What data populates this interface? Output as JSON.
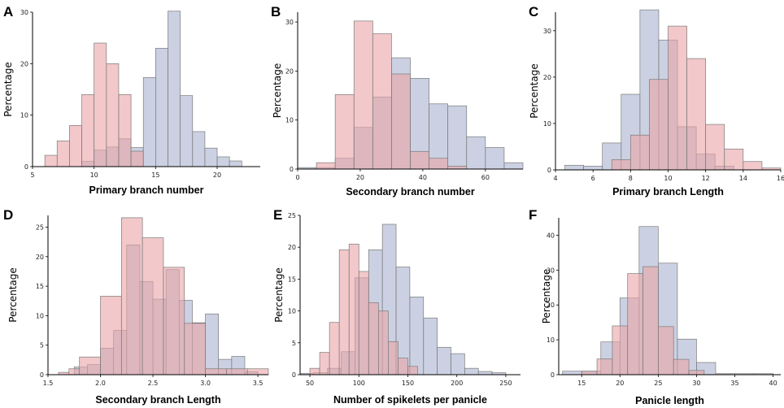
{
  "colors": {
    "series_a": "#e9a3a7",
    "series_b": "#a8b2cf",
    "edge": "#7b7b7b",
    "axis": "#000000"
  },
  "chart_data": [
    {
      "type": "bar",
      "letter": "A",
      "title": "",
      "xlabel": "Primary branch number",
      "ylabel": "Percentage",
      "xlim": [
        5,
        23.5
      ],
      "ylim": [
        0,
        30
      ],
      "xticks": [
        5,
        10,
        15,
        20
      ],
      "yticks": [
        0,
        10,
        20,
        30
      ],
      "grid": false,
      "series": [
        {
          "name": "red",
          "bins": [
            [
              6,
              7,
              2.2
            ],
            [
              7,
              8,
              5
            ],
            [
              8,
              9,
              8
            ],
            [
              9,
              10,
              14
            ],
            [
              10,
              11,
              24
            ],
            [
              11,
              12,
              20
            ],
            [
              12,
              13,
              14
            ],
            [
              13,
              14,
              3
            ]
          ]
        },
        {
          "name": "blue",
          "bins": [
            [
              9,
              10,
              1
            ],
            [
              10,
              11,
              3.2
            ],
            [
              11,
              12,
              3.8
            ],
            [
              12,
              13,
              5.4
            ],
            [
              13,
              14,
              3.7
            ],
            [
              14,
              15,
              17.3
            ],
            [
              15,
              16,
              23
            ],
            [
              16,
              17,
              30.2
            ],
            [
              17,
              18,
              13.8
            ],
            [
              18,
              19,
              6.8
            ],
            [
              19,
              20,
              3.6
            ],
            [
              20,
              21,
              1.9
            ],
            [
              21,
              22,
              1.1
            ]
          ]
        }
      ]
    },
    {
      "type": "bar",
      "letter": "B",
      "title": "",
      "xlabel": "Secondary branch number",
      "ylabel": "Percentage",
      "xlim": [
        0,
        72
      ],
      "ylim": [
        0,
        32
      ],
      "xticks": [
        0,
        20,
        40,
        60
      ],
      "yticks": [
        0,
        10,
        20,
        30
      ],
      "grid": false,
      "series": [
        {
          "name": "red",
          "bins": [
            [
              6,
              12,
              1.3
            ],
            [
              12,
              18,
              15.2
            ],
            [
              18,
              24,
              30.2
            ],
            [
              24,
              30,
              27.6
            ],
            [
              30,
              36,
              19.4
            ],
            [
              36,
              42,
              3.6
            ],
            [
              42,
              48,
              2.2
            ],
            [
              48,
              54,
              0.6
            ]
          ]
        },
        {
          "name": "blue",
          "bins": [
            [
              0,
              6,
              0.3
            ],
            [
              6,
              12,
              0.3
            ],
            [
              12,
              18,
              2.2
            ],
            [
              18,
              24,
              8.5
            ],
            [
              24,
              30,
              14.7
            ],
            [
              30,
              36,
              22.7
            ],
            [
              36,
              42,
              18.5
            ],
            [
              42,
              48,
              13.3
            ],
            [
              48,
              54,
              12.9
            ],
            [
              54,
              60,
              6.6
            ],
            [
              60,
              66,
              4.4
            ],
            [
              66,
              72,
              1.3
            ]
          ]
        }
      ]
    },
    {
      "type": "bar",
      "letter": "C",
      "title": "",
      "xlabel": "Primary branch Length",
      "ylabel": "Percentage",
      "xlim": [
        4,
        16
      ],
      "ylim": [
        0,
        34
      ],
      "xticks": [
        4,
        6,
        8,
        10,
        12,
        14,
        16
      ],
      "yticks": [
        0,
        10,
        20,
        30
      ],
      "grid": false,
      "series": [
        {
          "name": "red",
          "bins": [
            [
              7,
              8,
              2.2
            ],
            [
              8,
              9,
              7.5
            ],
            [
              9,
              10,
              19.5
            ],
            [
              10,
              11,
              31
            ],
            [
              11,
              12,
              24
            ],
            [
              12,
              13,
              9.8
            ],
            [
              13,
              14,
              4.5
            ],
            [
              14,
              15,
              1.8
            ],
            [
              15,
              16,
              0.4
            ]
          ]
        },
        {
          "name": "blue",
          "bins": [
            [
              4.5,
              5.5,
              1
            ],
            [
              5.5,
              6.5,
              0.8
            ],
            [
              6.5,
              7.5,
              5.8
            ],
            [
              7.5,
              8.5,
              16.3
            ],
            [
              8.5,
              9.5,
              34.5
            ],
            [
              9.5,
              10.5,
              28
            ],
            [
              10.5,
              11.5,
              9.3
            ],
            [
              11.5,
              12.5,
              3.4
            ],
            [
              12.5,
              13.5,
              0.8
            ]
          ]
        }
      ]
    },
    {
      "type": "bar",
      "letter": "D",
      "title": "",
      "xlabel": "Secondary branch Length",
      "ylabel": "Percentage",
      "xlim": [
        1.5,
        3.6
      ],
      "ylim": [
        0,
        27
      ],
      "xticks": [
        1.5,
        2.0,
        2.5,
        3.0,
        3.5
      ],
      "yticks": [
        0,
        5,
        10,
        15,
        20,
        25
      ],
      "grid": false,
      "tick_labels": [
        "1.5",
        "2.0",
        "2.5",
        "3.0",
        "3.5"
      ],
      "series": [
        {
          "name": "red",
          "bins": [
            [
              1.6,
              1.7,
              0.4
            ],
            [
              1.7,
              1.8,
              1
            ],
            [
              1.8,
              2.0,
              3
            ],
            [
              2.0,
              2.2,
              13.3
            ],
            [
              2.2,
              2.4,
              26.6
            ],
            [
              2.4,
              2.6,
              23.2
            ],
            [
              2.6,
              2.8,
              18.2
            ],
            [
              2.8,
              3.0,
              8.7
            ],
            [
              3.0,
              3.2,
              1
            ],
            [
              3.2,
              3.4,
              1
            ],
            [
              3.4,
              3.6,
              1
            ]
          ]
        },
        {
          "name": "blue",
          "bins": [
            [
              1.75,
              1.875,
              1.3
            ],
            [
              1.875,
              2.0,
              1.7
            ],
            [
              2.0,
              2.125,
              4.5
            ],
            [
              2.125,
              2.25,
              7.5
            ],
            [
              2.25,
              2.375,
              22
            ],
            [
              2.375,
              2.5,
              15.8
            ],
            [
              2.5,
              2.625,
              12.8
            ],
            [
              2.625,
              2.75,
              17.8
            ],
            [
              2.75,
              2.875,
              12.6
            ],
            [
              2.875,
              3.0,
              8.8
            ],
            [
              3.0,
              3.125,
              10.3
            ],
            [
              3.125,
              3.25,
              2.6
            ],
            [
              3.25,
              3.375,
              3.1
            ],
            [
              3.375,
              3.5,
              0.5
            ]
          ]
        }
      ]
    },
    {
      "type": "bar",
      "letter": "E",
      "title": "",
      "xlabel": "Number of spikelets per panicle",
      "ylabel": "Percentage",
      "xlim": [
        40,
        265
      ],
      "ylim": [
        0,
        25
      ],
      "xticks": [
        50,
        100,
        150,
        200,
        250
      ],
      "yticks": [
        0,
        5,
        10,
        15,
        20,
        25
      ],
      "grid": false,
      "series": [
        {
          "name": "red",
          "bins": [
            [
              50,
              60,
              1
            ],
            [
              60,
              70,
              3.5
            ],
            [
              70,
              80,
              8.2
            ],
            [
              80,
              90,
              19.6
            ],
            [
              90,
              100,
              20.5
            ],
            [
              100,
              110,
              16.2
            ],
            [
              110,
              120,
              11.3
            ],
            [
              120,
              130,
              10
            ],
            [
              130,
              140,
              5.2
            ],
            [
              140,
              150,
              2.6
            ],
            [
              150,
              160,
              1.3
            ]
          ]
        },
        {
          "name": "blue",
          "bins": [
            [
              40,
              54,
              0.2
            ],
            [
              54,
              68,
              0.3
            ],
            [
              68,
              82,
              1
            ],
            [
              82,
              96,
              3.6
            ],
            [
              96,
              110,
              15.2
            ],
            [
              110,
              124,
              19.6
            ],
            [
              124,
              138,
              23.6
            ],
            [
              138,
              152,
              16.9
            ],
            [
              152,
              166,
              12.2
            ],
            [
              166,
              180,
              8.9
            ],
            [
              180,
              194,
              4.3
            ],
            [
              194,
              208,
              3.3
            ],
            [
              208,
              222,
              1
            ],
            [
              222,
              236,
              0.5
            ],
            [
              236,
              250,
              0.3
            ]
          ]
        }
      ]
    },
    {
      "type": "bar",
      "letter": "F",
      "title": "",
      "xlabel": "Panicle length",
      "ylabel": "Percentage",
      "xlim": [
        12,
        41
      ],
      "ylim": [
        0,
        45
      ],
      "xticks": [
        15,
        20,
        25,
        30,
        35,
        40
      ],
      "yticks": [
        0,
        10,
        20,
        30,
        40
      ],
      "grid": false,
      "series": [
        {
          "name": "red",
          "bins": [
            [
              15,
              17,
              1
            ],
            [
              17,
              19,
              4.5
            ],
            [
              19,
              21,
              14
            ],
            [
              21,
              23,
              29
            ],
            [
              23,
              25,
              31
            ],
            [
              25,
              27,
              13.8
            ],
            [
              27,
              29,
              4.4
            ],
            [
              29,
              31,
              1.2
            ]
          ]
        },
        {
          "name": "blue",
          "bins": [
            [
              12.5,
              15,
              1
            ],
            [
              15,
              17.5,
              1
            ],
            [
              17.5,
              20,
              9.4
            ],
            [
              20,
              22.5,
              22
            ],
            [
              22.5,
              25,
              42.5
            ],
            [
              25,
              27.5,
              32
            ],
            [
              27.5,
              30,
              10.2
            ],
            [
              30,
              32.5,
              3.5
            ],
            [
              32.5,
              35,
              0.3
            ],
            [
              35,
              37.5,
              0.3
            ],
            [
              37.5,
              40,
              0.3
            ]
          ]
        }
      ]
    }
  ]
}
